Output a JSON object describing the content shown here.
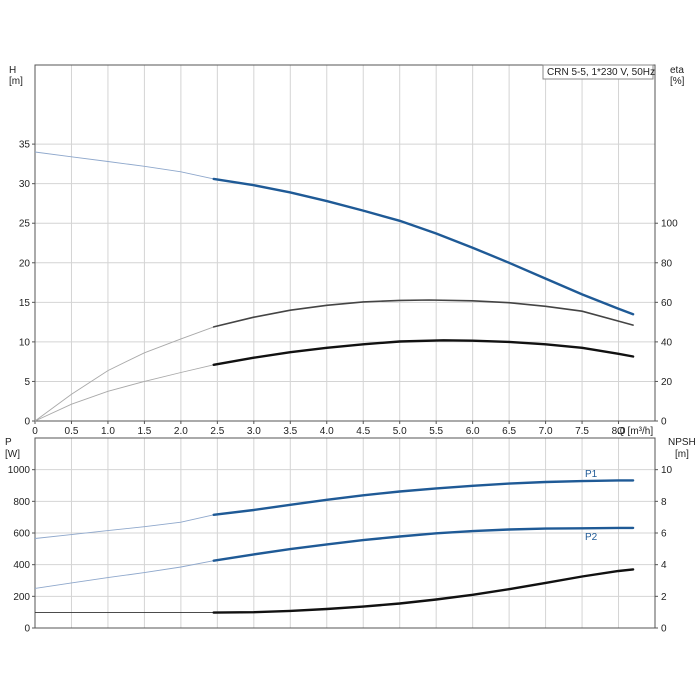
{
  "chart_data": [
    {
      "type": "line",
      "title": "CRN 5-5, 1*230 V, 50Hz",
      "left_axis": {
        "label_line1": "H",
        "label_line2": "[m]",
        "range": [
          0,
          45
        ],
        "ticks": [
          0,
          5,
          10,
          15,
          20,
          25,
          30,
          35
        ]
      },
      "right_axis": {
        "label_line1": "eta",
        "label_line2": "[%]",
        "range": [
          0,
          180
        ],
        "ticks": [
          0,
          20,
          40,
          60,
          80,
          100
        ]
      },
      "x_axis": {
        "label": "Q [m³/h]",
        "range": [
          0,
          8.5
        ],
        "ticks": [
          0,
          0.5,
          1.0,
          1.5,
          2.0,
          2.5,
          3.0,
          3.5,
          4.0,
          4.5,
          5.0,
          5.5,
          6.0,
          6.5,
          7.0,
          7.5,
          8.0
        ],
        "tick_labels": [
          "0",
          "0.5",
          "1.0",
          "1.5",
          "2.0",
          "2.5",
          "3.0",
          "3.5",
          "4.0",
          "4.5",
          "5.0",
          "5.5",
          "6.0",
          "6.5",
          "7.0",
          "7.5",
          "8.0"
        ]
      },
      "grid": true,
      "series": [
        {
          "axis": "left",
          "color": "#1f5a96",
          "x": [
            0,
            0.5,
            1.0,
            1.5,
            2.0,
            2.45,
            3.0,
            3.5,
            4.0,
            4.5,
            5.0,
            5.5,
            6.0,
            6.5,
            7.0,
            7.5,
            8.0,
            8.2
          ],
          "y": [
            34.0,
            33.4,
            32.8,
            32.2,
            31.5,
            30.6,
            29.8,
            28.9,
            27.8,
            26.6,
            25.3,
            23.7,
            21.9,
            20.0,
            18.0,
            16.0,
            14.2,
            13.5
          ],
          "min_operating_x": 2.45
        },
        {
          "axis": "right",
          "color": "#444444",
          "x": [
            0,
            0.5,
            1.0,
            1.5,
            2.0,
            2.45,
            3.0,
            3.5,
            4.0,
            4.5,
            5.0,
            5.4,
            6.0,
            6.5,
            7.0,
            7.5,
            8.0,
            8.2
          ],
          "y": [
            0,
            13.5,
            25.5,
            34.5,
            41.5,
            47.6,
            52.5,
            56.0,
            58.5,
            60.2,
            61.0,
            61.2,
            60.8,
            59.8,
            58.0,
            55.5,
            50.5,
            48.5
          ],
          "min_operating_x": 2.45
        },
        {
          "axis": "right",
          "color": "#111111",
          "x": [
            0,
            0.5,
            1.0,
            1.5,
            2.0,
            2.45,
            3.0,
            3.5,
            4.0,
            4.5,
            5.0,
            5.6,
            6.0,
            6.5,
            7.0,
            7.5,
            8.0,
            8.2
          ],
          "y": [
            0,
            8.5,
            15.0,
            20.0,
            24.5,
            28.4,
            32.0,
            34.8,
            37.0,
            38.8,
            40.2,
            40.8,
            40.6,
            40.0,
            38.8,
            37.0,
            34.0,
            32.6
          ],
          "min_operating_x": 2.45
        }
      ]
    },
    {
      "type": "line",
      "left_axis": {
        "label_line1": "P",
        "label_line2": "[W]",
        "range": [
          0,
          1200
        ],
        "ticks": [
          0,
          200,
          400,
          600,
          800,
          1000
        ]
      },
      "right_axis": {
        "label_line1": "NPSH",
        "label_line2": "[m]",
        "range": [
          0,
          12
        ],
        "ticks": [
          0,
          2,
          4,
          6,
          8,
          10
        ]
      },
      "x_axis": {
        "range": [
          0,
          8.5
        ]
      },
      "grid": true,
      "series": [
        {
          "name": "P1",
          "axis": "left",
          "color": "#1f5a96",
          "x": [
            0,
            0.5,
            1.0,
            1.5,
            2.0,
            2.45,
            3.0,
            3.5,
            4.0,
            4.5,
            5.0,
            5.5,
            6.0,
            6.5,
            7.0,
            7.5,
            8.0,
            8.2
          ],
          "y": [
            565,
            590,
            615,
            640,
            668,
            715,
            745,
            778,
            810,
            838,
            862,
            882,
            898,
            912,
            922,
            928,
            932,
            932
          ],
          "min_operating_x": 2.45
        },
        {
          "name": "P2",
          "axis": "left",
          "color": "#1f5a96",
          "x": [
            0,
            0.5,
            1.0,
            1.5,
            2.0,
            2.45,
            3.0,
            3.5,
            4.0,
            4.5,
            5.0,
            5.5,
            6.0,
            6.5,
            7.0,
            7.5,
            8.0,
            8.2
          ],
          "y": [
            250,
            285,
            318,
            350,
            385,
            425,
            465,
            498,
            528,
            555,
            578,
            598,
            612,
            622,
            628,
            630,
            632,
            632
          ],
          "min_operating_x": 2.45
        },
        {
          "axis": "right",
          "color": "#111111",
          "x": [
            0,
            0.5,
            1.0,
            1.5,
            2.0,
            2.45,
            3.0,
            3.5,
            4.0,
            4.5,
            5.0,
            5.5,
            6.0,
            6.5,
            7.0,
            7.5,
            8.0,
            8.2
          ],
          "y": [
            0.97,
            0.97,
            0.97,
            0.97,
            0.97,
            0.97,
            1.0,
            1.08,
            1.2,
            1.35,
            1.55,
            1.8,
            2.1,
            2.45,
            2.85,
            3.25,
            3.6,
            3.7
          ],
          "min_operating_x": 2.45
        }
      ]
    }
  ]
}
